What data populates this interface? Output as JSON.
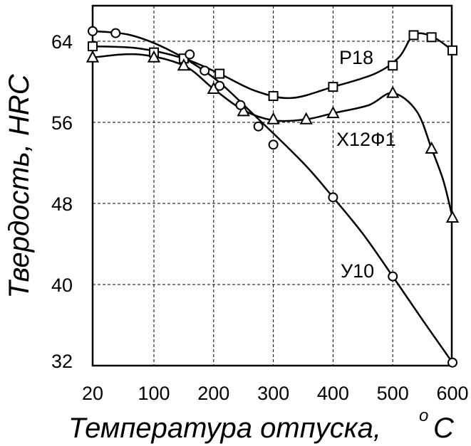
{
  "chart_data": {
    "type": "line",
    "xlabel": "Температура отпуска,",
    "xlabel_unit_sup": "o",
    "xlabel_unit": "C",
    "ylabel": "Твердость, HRC",
    "xlim": [
      20,
      600
    ],
    "ylim": [
      32,
      67
    ],
    "grid": "dashed horizontal and vertical",
    "x_ticks": [
      {
        "value": 20,
        "label": "20"
      },
      {
        "value": 100,
        "label": "100"
      },
      {
        "value": 200,
        "label": "200"
      },
      {
        "value": 300,
        "label": "300"
      },
      {
        "value": 400,
        "label": "400"
      },
      {
        "value": 500,
        "label": "500"
      },
      {
        "value": 600,
        "label": "600"
      }
    ],
    "y_ticks": [
      {
        "value": 32,
        "label": "32"
      },
      {
        "value": 40,
        "label": "40"
      },
      {
        "value": 48,
        "label": "48"
      },
      {
        "value": 56,
        "label": "56"
      },
      {
        "value": 64,
        "label": "64"
      }
    ],
    "series": [
      {
        "name": "Р18",
        "marker": "square",
        "points": [
          [
            20,
            63.5
          ],
          [
            100,
            62.9
          ],
          [
            150,
            62.3
          ],
          [
            210,
            60.8
          ],
          [
            300,
            58.6
          ],
          [
            400,
            59.5
          ],
          [
            500,
            61.6
          ],
          [
            535,
            64.6
          ],
          [
            565,
            64.4
          ],
          [
            600,
            63.1
          ]
        ],
        "curve": [
          [
            20,
            63.5
          ],
          [
            80,
            63.3
          ],
          [
            150,
            62.3
          ],
          [
            210,
            60.8
          ],
          [
            270,
            59.1
          ],
          [
            330,
            58.4
          ],
          [
            400,
            59.5
          ],
          [
            470,
            60.8
          ],
          [
            510,
            62.4
          ],
          [
            535,
            64.6
          ],
          [
            565,
            64.5
          ],
          [
            600,
            63.1
          ]
        ]
      },
      {
        "name": "Х12Ф1",
        "marker": "triangle",
        "points": [
          [
            20,
            62.4
          ],
          [
            100,
            62.4
          ],
          [
            150,
            61.6
          ],
          [
            200,
            59.3
          ],
          [
            250,
            57.1
          ],
          [
            300,
            56.3
          ],
          [
            355,
            56.3
          ],
          [
            400,
            56.9
          ],
          [
            500,
            58.9
          ],
          [
            565,
            53.4
          ],
          [
            600,
            46.6
          ]
        ],
        "curve": [
          [
            20,
            62.4
          ],
          [
            80,
            62.7
          ],
          [
            150,
            61.6
          ],
          [
            200,
            59.3
          ],
          [
            250,
            57.2
          ],
          [
            300,
            56.2
          ],
          [
            355,
            56.3
          ],
          [
            400,
            56.9
          ],
          [
            460,
            57.7
          ],
          [
            500,
            58.9
          ],
          [
            540,
            57.1
          ],
          [
            565,
            53.4
          ],
          [
            585,
            50.2
          ],
          [
            600,
            46.6
          ]
        ]
      },
      {
        "name": "У10",
        "marker": "circle",
        "points": [
          [
            20,
            65.0
          ],
          [
            50,
            64.8
          ],
          [
            160,
            62.7
          ],
          [
            185,
            61.1
          ],
          [
            210,
            59.6
          ],
          [
            245,
            57.7
          ],
          [
            275,
            55.6
          ],
          [
            300,
            53.8
          ],
          [
            400,
            48.6
          ],
          [
            500,
            40.8
          ],
          [
            600,
            32.3
          ]
        ],
        "curve": [
          [
            20,
            65.0
          ],
          [
            70,
            64.6
          ],
          [
            130,
            63.0
          ],
          [
            200,
            60.4
          ],
          [
            270,
            56.6
          ],
          [
            350,
            52.0
          ],
          [
            400,
            48.6
          ],
          [
            450,
            45.0
          ],
          [
            500,
            40.8
          ],
          [
            550,
            36.5
          ],
          [
            600,
            32.3
          ]
        ]
      }
    ]
  }
}
